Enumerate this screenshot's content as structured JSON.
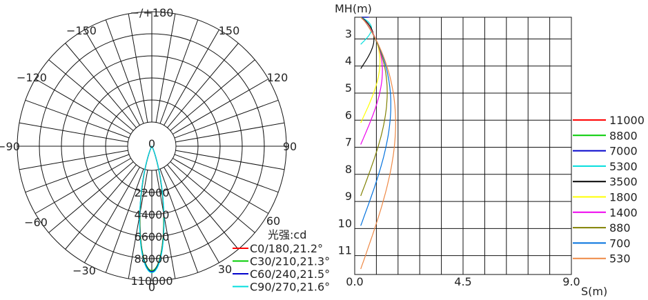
{
  "chart_data": [
    {
      "type": "polar",
      "unit_label": "光强:cd",
      "angle_labels": [
        "−/+180",
        "−150",
        "150",
        "−120",
        "120",
        "−90",
        "90",
        "−60",
        "60",
        "−30",
        "30",
        "0"
      ],
      "radial_ticks": [
        0,
        22000,
        44000,
        66000,
        88000,
        110000
      ],
      "radial_tick_labels": [
        "0",
        "22000",
        "44000",
        "66000",
        "88000",
        "110000"
      ],
      "rmax": 110000,
      "series": [
        {
          "name": "C0/180,21.2°",
          "color": "#ff0000",
          "peak_cd": 100000,
          "half_width_deg": 10.6
        },
        {
          "name": "C30/210,21.3°",
          "color": "#00cc00",
          "peak_cd": 100000,
          "half_width_deg": 10.7
        },
        {
          "name": "C60/240,21.5°",
          "color": "#0000cc",
          "peak_cd": 101000,
          "half_width_deg": 10.8
        },
        {
          "name": "C90/270,21.6°",
          "color": "#00dddd",
          "peak_cd": 102000,
          "half_width_deg": 10.8
        }
      ]
    },
    {
      "type": "line",
      "ylabel": "MH(m)",
      "xlabel": "S(m)",
      "x_ticks": [
        "0.0",
        "4.5",
        "9.0"
      ],
      "y_ticks": [
        "3",
        "4",
        "5",
        "6",
        "7",
        "8",
        "9",
        "10",
        "11"
      ],
      "xlim": [
        0,
        9
      ],
      "ylim": [
        2.3,
        11.8
      ],
      "grid": true,
      "legend_position": "right",
      "series": [
        {
          "name": "11000",
          "color": "#ff0000",
          "max_height_m": 2.3,
          "max_spread_m": 0.25
        },
        {
          "name": "8800",
          "color": "#00cc00",
          "max_height_m": 2.3,
          "max_spread_m": 0.3
        },
        {
          "name": "7000",
          "color": "#0000cc",
          "max_height_m": 2.3,
          "max_spread_m": 0.35
        },
        {
          "name": "5300",
          "color": "#00dddd",
          "max_height_m": 3.3,
          "max_spread_m": 0.45
        },
        {
          "name": "3500",
          "color": "#000000",
          "max_height_m": 4.2,
          "max_spread_m": 0.55
        },
        {
          "name": "1800",
          "color": "#ffff00",
          "max_height_m": 6.2,
          "max_spread_m": 0.8
        },
        {
          "name": "1400",
          "color": "#ee00ee",
          "max_height_m": 7.0,
          "max_spread_m": 0.9
        },
        {
          "name": "880",
          "color": "#808000",
          "max_height_m": 8.9,
          "max_spread_m": 1.1
        },
        {
          "name": "700",
          "color": "#0070dd",
          "max_height_m": 10.0,
          "max_spread_m": 1.25
        },
        {
          "name": "530",
          "color": "#ee8844",
          "max_height_m": 11.6,
          "max_spread_m": 1.45
        }
      ]
    }
  ]
}
